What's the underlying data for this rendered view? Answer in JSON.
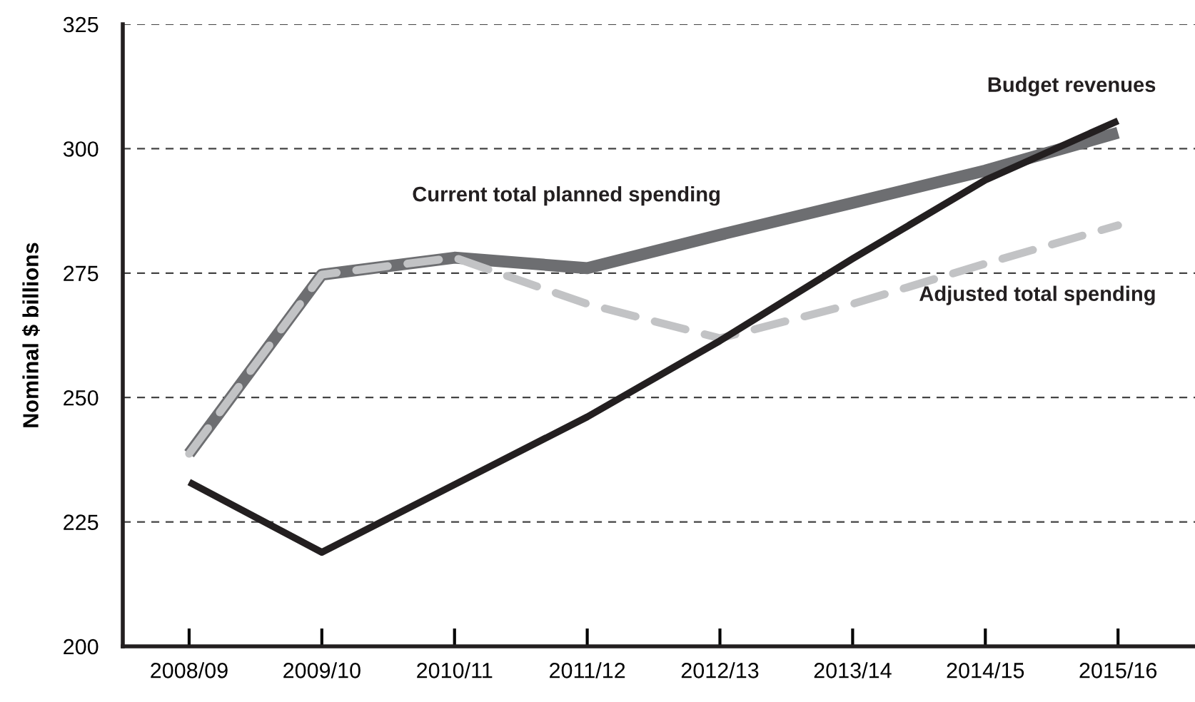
{
  "chart_data": {
    "type": "line",
    "ylabel": "Nominal $ billions",
    "categories": [
      "2008/09",
      "2009/10",
      "2010/11",
      "2011/12",
      "2012/13",
      "2013/14",
      "2014/15",
      "2015/16"
    ],
    "series": [
      {
        "name": "Current total planned spending",
        "color": "#6d6e71",
        "values": [
          238.7,
          274.7,
          278.1,
          276.0,
          282.7,
          289.1,
          295.6,
          303.2
        ]
      },
      {
        "name": "Adjusted total spending",
        "color": "#c2c3c5",
        "line_style": "dashed",
        "values": [
          238.7,
          274.7,
          278.1,
          268.8,
          261.9,
          268.8,
          276.9,
          284.6
        ]
      },
      {
        "name": "Budget revenues",
        "color": "#231f20",
        "values": [
          233.0,
          218.9,
          232.5,
          246.1,
          261.4,
          277.9,
          293.7,
          305.6
        ]
      }
    ],
    "ylim": [
      200,
      325
    ],
    "yticks": [
      200,
      225,
      250,
      275,
      300,
      325
    ],
    "grid": "y",
    "line_style": "solid",
    "marker": "none"
  }
}
